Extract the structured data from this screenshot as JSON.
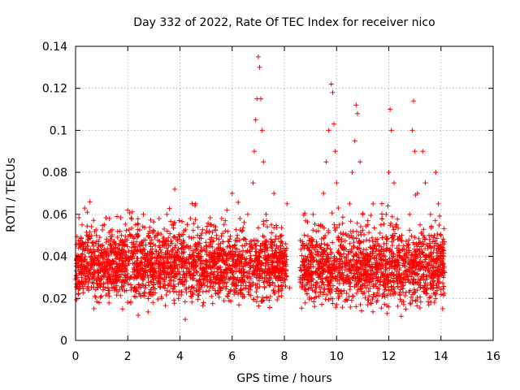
{
  "chart_data": {
    "type": "scatter",
    "title": "Day 332 of 2022, Rate Of TEC Index for receiver nico",
    "xlabel": "GPS time / hours",
    "ylabel": "ROTI / TECUs",
    "xlim": [
      0,
      16
    ],
    "ylim": [
      0,
      0.14
    ],
    "xticks": [
      0,
      2,
      4,
      6,
      8,
      10,
      12,
      14,
      16
    ],
    "yticks": [
      0,
      0.02,
      0.04,
      0.06,
      0.08,
      0.1,
      0.12,
      0.14
    ],
    "xtick_labels": [
      "0",
      "2",
      "4",
      "6",
      "8",
      "10",
      "12",
      "14",
      "16"
    ],
    "ytick_labels": [
      "0",
      "0.02",
      "0.04",
      "0.06",
      "0.08",
      "0.1",
      "0.12",
      "0.14"
    ],
    "grid": true,
    "marker": "+",
    "color": "#ff0000",
    "series": [
      {
        "name": "ROTI",
        "points": [
          [
            0.05,
            0.03
          ],
          [
            0.1,
            0.022
          ],
          [
            0.15,
            0.038
          ],
          [
            0.2,
            0.045
          ],
          [
            0.25,
            0.055
          ],
          [
            0.3,
            0.028
          ],
          [
            0.35,
            0.063
          ],
          [
            0.4,
            0.035
          ],
          [
            0.45,
            0.061
          ],
          [
            0.5,
            0.024
          ],
          [
            0.55,
            0.066
          ],
          [
            0.6,
            0.04
          ],
          [
            0.7,
            0.032
          ],
          [
            0.8,
            0.05
          ],
          [
            0.9,
            0.018
          ],
          [
            1.0,
            0.045
          ],
          [
            1.1,
            0.055
          ],
          [
            1.2,
            0.03
          ],
          [
            1.3,
            0.058
          ],
          [
            1.4,
            0.025
          ],
          [
            1.5,
            0.042
          ],
          [
            1.6,
            0.035
          ],
          [
            1.7,
            0.052
          ],
          [
            1.8,
            0.015
          ],
          [
            1.9,
            0.048
          ],
          [
            2.0,
            0.062
          ],
          [
            2.1,
            0.03
          ],
          [
            2.2,
            0.04
          ],
          [
            2.3,
            0.055
          ],
          [
            2.4,
            0.012
          ],
          [
            2.5,
            0.045
          ],
          [
            2.6,
            0.06
          ],
          [
            2.7,
            0.035
          ],
          [
            2.8,
            0.05
          ],
          [
            2.9,
            0.028
          ],
          [
            3.0,
            0.052
          ],
          [
            3.1,
            0.038
          ],
          [
            3.2,
            0.058
          ],
          [
            3.3,
            0.02
          ],
          [
            3.4,
            0.045
          ],
          [
            3.5,
            0.06
          ],
          [
            3.6,
            0.032
          ],
          [
            3.7,
            0.055
          ],
          [
            3.8,
            0.072
          ],
          [
            3.9,
            0.04
          ],
          [
            4.0,
            0.05
          ],
          [
            4.1,
            0.03
          ],
          [
            4.2,
            0.01
          ],
          [
            4.3,
            0.045
          ],
          [
            4.4,
            0.058
          ],
          [
            4.5,
            0.022
          ],
          [
            4.6,
            0.065
          ],
          [
            4.7,
            0.04
          ],
          [
            4.8,
            0.05
          ],
          [
            4.9,
            0.018
          ],
          [
            5.0,
            0.045
          ],
          [
            5.1,
            0.035
          ],
          [
            5.2,
            0.055
          ],
          [
            5.3,
            0.028
          ],
          [
            5.4,
            0.05
          ],
          [
            5.5,
            0.04
          ],
          [
            5.6,
            0.058
          ],
          [
            5.7,
            0.03
          ],
          [
            5.8,
            0.062
          ],
          [
            5.9,
            0.045
          ],
          [
            6.0,
            0.07
          ],
          [
            6.1,
            0.035
          ],
          [
            6.2,
            0.05
          ],
          [
            6.3,
            0.058
          ],
          [
            6.4,
            0.028
          ],
          [
            6.5,
            0.048
          ],
          [
            6.6,
            0.06
          ],
          [
            6.7,
            0.038
          ],
          [
            6.8,
            0.075
          ],
          [
            6.85,
            0.09
          ],
          [
            6.9,
            0.105
          ],
          [
            6.95,
            0.115
          ],
          [
            7.0,
            0.135
          ],
          [
            7.05,
            0.13
          ],
          [
            7.1,
            0.115
          ],
          [
            7.15,
            0.1
          ],
          [
            7.2,
            0.085
          ],
          [
            7.3,
            0.06
          ],
          [
            7.4,
            0.04
          ],
          [
            7.5,
            0.055
          ],
          [
            7.6,
            0.07
          ],
          [
            7.7,
            0.045
          ],
          [
            7.8,
            0.03
          ],
          [
            7.9,
            0.05
          ],
          [
            8.0,
            0.04
          ],
          [
            8.1,
            0.065
          ],
          [
            8.2,
            0.025
          ],
          [
            8.6,
            0.03
          ],
          [
            8.7,
            0.045
          ],
          [
            8.8,
            0.04
          ],
          [
            9.0,
            0.035
          ],
          [
            9.1,
            0.06
          ],
          [
            9.2,
            0.045
          ],
          [
            9.3,
            0.03
          ],
          [
            9.4,
            0.055
          ],
          [
            9.5,
            0.07
          ],
          [
            9.6,
            0.085
          ],
          [
            9.7,
            0.1
          ],
          [
            9.8,
            0.122
          ],
          [
            9.85,
            0.118
          ],
          [
            9.9,
            0.103
          ],
          [
            9.95,
            0.09
          ],
          [
            10.0,
            0.075
          ],
          [
            10.1,
            0.055
          ],
          [
            10.2,
            0.04
          ],
          [
            10.3,
            0.028
          ],
          [
            10.4,
            0.05
          ],
          [
            10.5,
            0.065
          ],
          [
            10.6,
            0.08
          ],
          [
            10.7,
            0.095
          ],
          [
            10.75,
            0.112
          ],
          [
            10.8,
            0.108
          ],
          [
            10.9,
            0.085
          ],
          [
            11.0,
            0.06
          ],
          [
            11.1,
            0.04
          ],
          [
            11.2,
            0.055
          ],
          [
            11.3,
            0.035
          ],
          [
            11.4,
            0.065
          ],
          [
            11.5,
            0.048
          ],
          [
            11.6,
            0.03
          ],
          [
            11.7,
            0.055
          ],
          [
            11.8,
            0.04
          ],
          [
            11.9,
            0.06
          ],
          [
            12.0,
            0.08
          ],
          [
            12.05,
            0.11
          ],
          [
            12.1,
            0.1
          ],
          [
            12.2,
            0.075
          ],
          [
            12.3,
            0.055
          ],
          [
            12.4,
            0.04
          ],
          [
            12.5,
            0.05
          ],
          [
            12.6,
            0.03
          ],
          [
            12.7,
            0.045
          ],
          [
            12.8,
            0.06
          ],
          [
            12.9,
            0.1
          ],
          [
            12.95,
            0.114
          ],
          [
            13.0,
            0.09
          ],
          [
            13.1,
            0.07
          ],
          [
            13.2,
            0.055
          ],
          [
            13.3,
            0.09
          ],
          [
            13.4,
            0.075
          ],
          [
            13.5,
            0.045
          ],
          [
            13.6,
            0.06
          ],
          [
            13.7,
            0.03
          ],
          [
            13.8,
            0.08
          ],
          [
            13.9,
            0.065
          ],
          [
            14.0,
            0.05
          ],
          [
            14.1,
            0.04
          ]
        ]
      }
    ],
    "density_band": {
      "note": "dense cloud of + markers",
      "segments": [
        {
          "x": [
            0.0,
            8.1
          ],
          "low": 0.018,
          "high": 0.05
        },
        {
          "x": [
            8.6,
            14.15
          ],
          "low": 0.015,
          "high": 0.052
        }
      ]
    }
  }
}
